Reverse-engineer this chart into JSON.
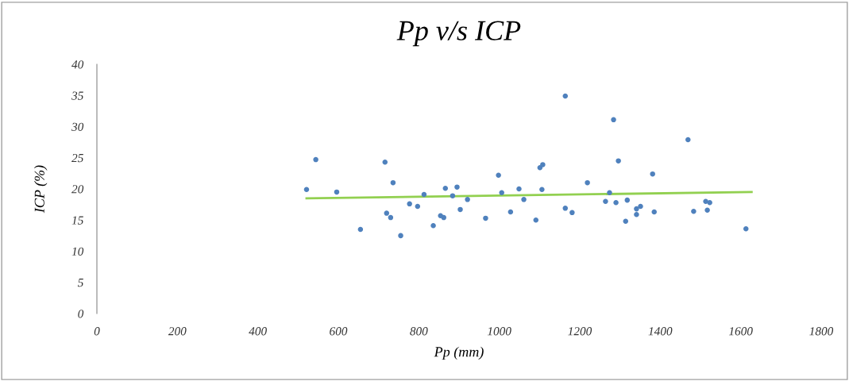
{
  "chart_data": {
    "type": "scatter",
    "title": "Pp v/s ICP",
    "xlabel": "Pp (mm)",
    "ylabel": "ICP (%)",
    "xlim": [
      0,
      1800
    ],
    "xticks": [
      0,
      200,
      400,
      600,
      800,
      1000,
      1200,
      1400,
      1600,
      1800
    ],
    "ylim": [
      0,
      40
    ],
    "yticks": [
      0,
      5,
      10,
      15,
      20,
      25,
      30,
      35,
      40
    ],
    "grid": false,
    "legend": false,
    "series": [
      {
        "marker": "circle",
        "color": "#4f81bd",
        "x": [
          521,
          544,
          596,
          655,
          716,
          720,
          730,
          736,
          755,
          777,
          797,
          813,
          836,
          854,
          862,
          866,
          884,
          895,
          903,
          921,
          966,
          998,
          1006,
          1028,
          1049,
          1061,
          1091,
          1101,
          1108,
          1106,
          1164,
          1164,
          1181,
          1219,
          1264,
          1274,
          1284,
          1290,
          1296,
          1314,
          1318,
          1341,
          1341,
          1351,
          1381,
          1385,
          1469,
          1483,
          1513,
          1517,
          1523,
          1613
        ],
        "values": [
          19.9,
          24.7,
          19.5,
          13.5,
          24.3,
          16.1,
          15.4,
          21.0,
          12.5,
          17.6,
          17.2,
          19.1,
          14.1,
          15.7,
          15.4,
          20.1,
          18.9,
          20.3,
          16.7,
          18.3,
          15.3,
          22.2,
          19.4,
          16.3,
          20.0,
          18.3,
          15.0,
          23.4,
          23.9,
          19.9,
          34.9,
          16.9,
          16.2,
          21.0,
          18.0,
          19.4,
          31.1,
          17.8,
          24.5,
          14.8,
          18.2,
          15.9,
          16.8,
          17.2,
          22.4,
          16.3,
          27.9,
          16.4,
          18.0,
          16.6,
          17.8,
          13.6
        ]
      },
      {
        "type": "line",
        "color": "#92d050",
        "x": [
          521,
          1627
        ],
        "values": [
          18.5,
          19.5
        ]
      }
    ]
  }
}
